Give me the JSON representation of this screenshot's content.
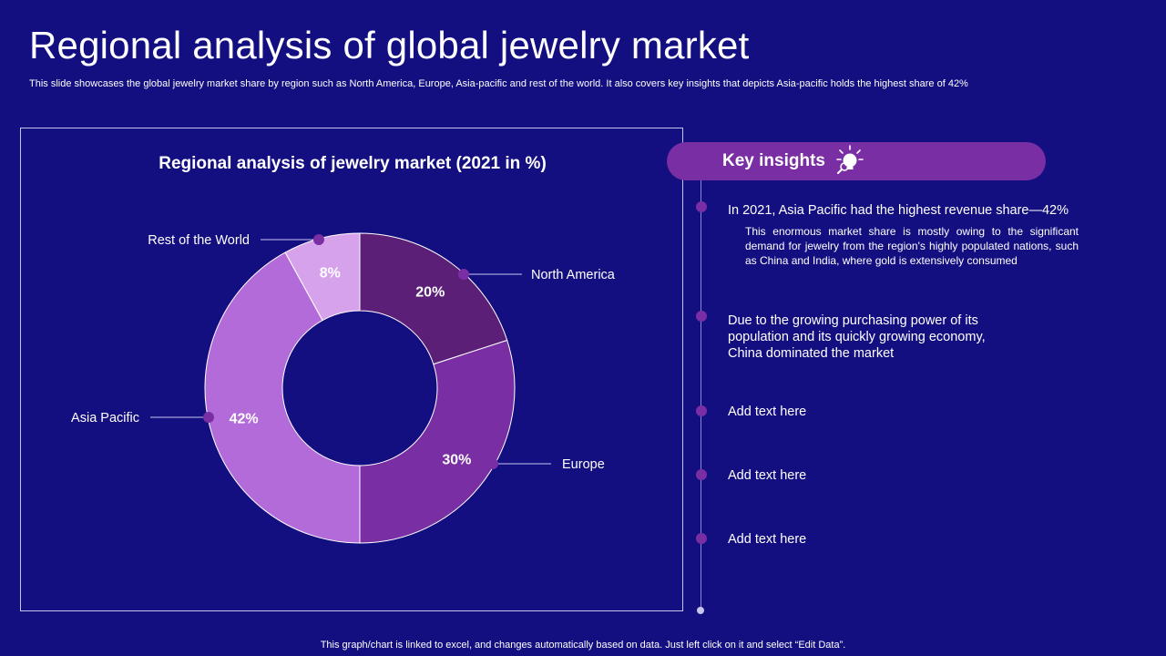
{
  "page": {
    "title": "Regional analysis of global jewelry market",
    "subtitle": "This slide showcases the global jewelry market share by region such as North America, Europe, Asia-pacific and rest of the world. It also covers key insights that depicts Asia-pacific holds the highest share of 42%",
    "footer": "This graph/chart is linked to excel, and changes automatically based on data. Just left click on it and select “Edit Data”."
  },
  "chart_data": {
    "type": "pie",
    "title": "Regional analysis of jewelry market (2021 in %)",
    "categories": [
      "North America",
      "Europe",
      "Asia Pacific",
      "Rest of the World"
    ],
    "values": [
      20,
      30,
      42,
      8
    ],
    "labels": [
      "20%",
      "30%",
      "42%",
      "8%"
    ],
    "colors": [
      "#5b1f78",
      "#7a2ea3",
      "#b26bd8",
      "#d6a2ec"
    ]
  },
  "insights": {
    "header": "Key insights",
    "items": [
      {
        "title": "In 2021, Asia Pacific had the highest revenue share—42%",
        "body": "This enormous market share is mostly owing to the significant demand for jewelry from the region's highly populated nations, such as China and India, where gold is extensively consumed"
      },
      {
        "lines": [
          "Due to the growing purchasing power of its",
          "population and its quickly growing economy,",
          "China dominated the market"
        ]
      },
      {
        "title": "Add text here"
      },
      {
        "title": "Add text here"
      },
      {
        "title": "Add text here"
      }
    ]
  },
  "colors": {
    "background": "#130f80",
    "accent": "#7a2ea3",
    "text": "#ffffff"
  }
}
